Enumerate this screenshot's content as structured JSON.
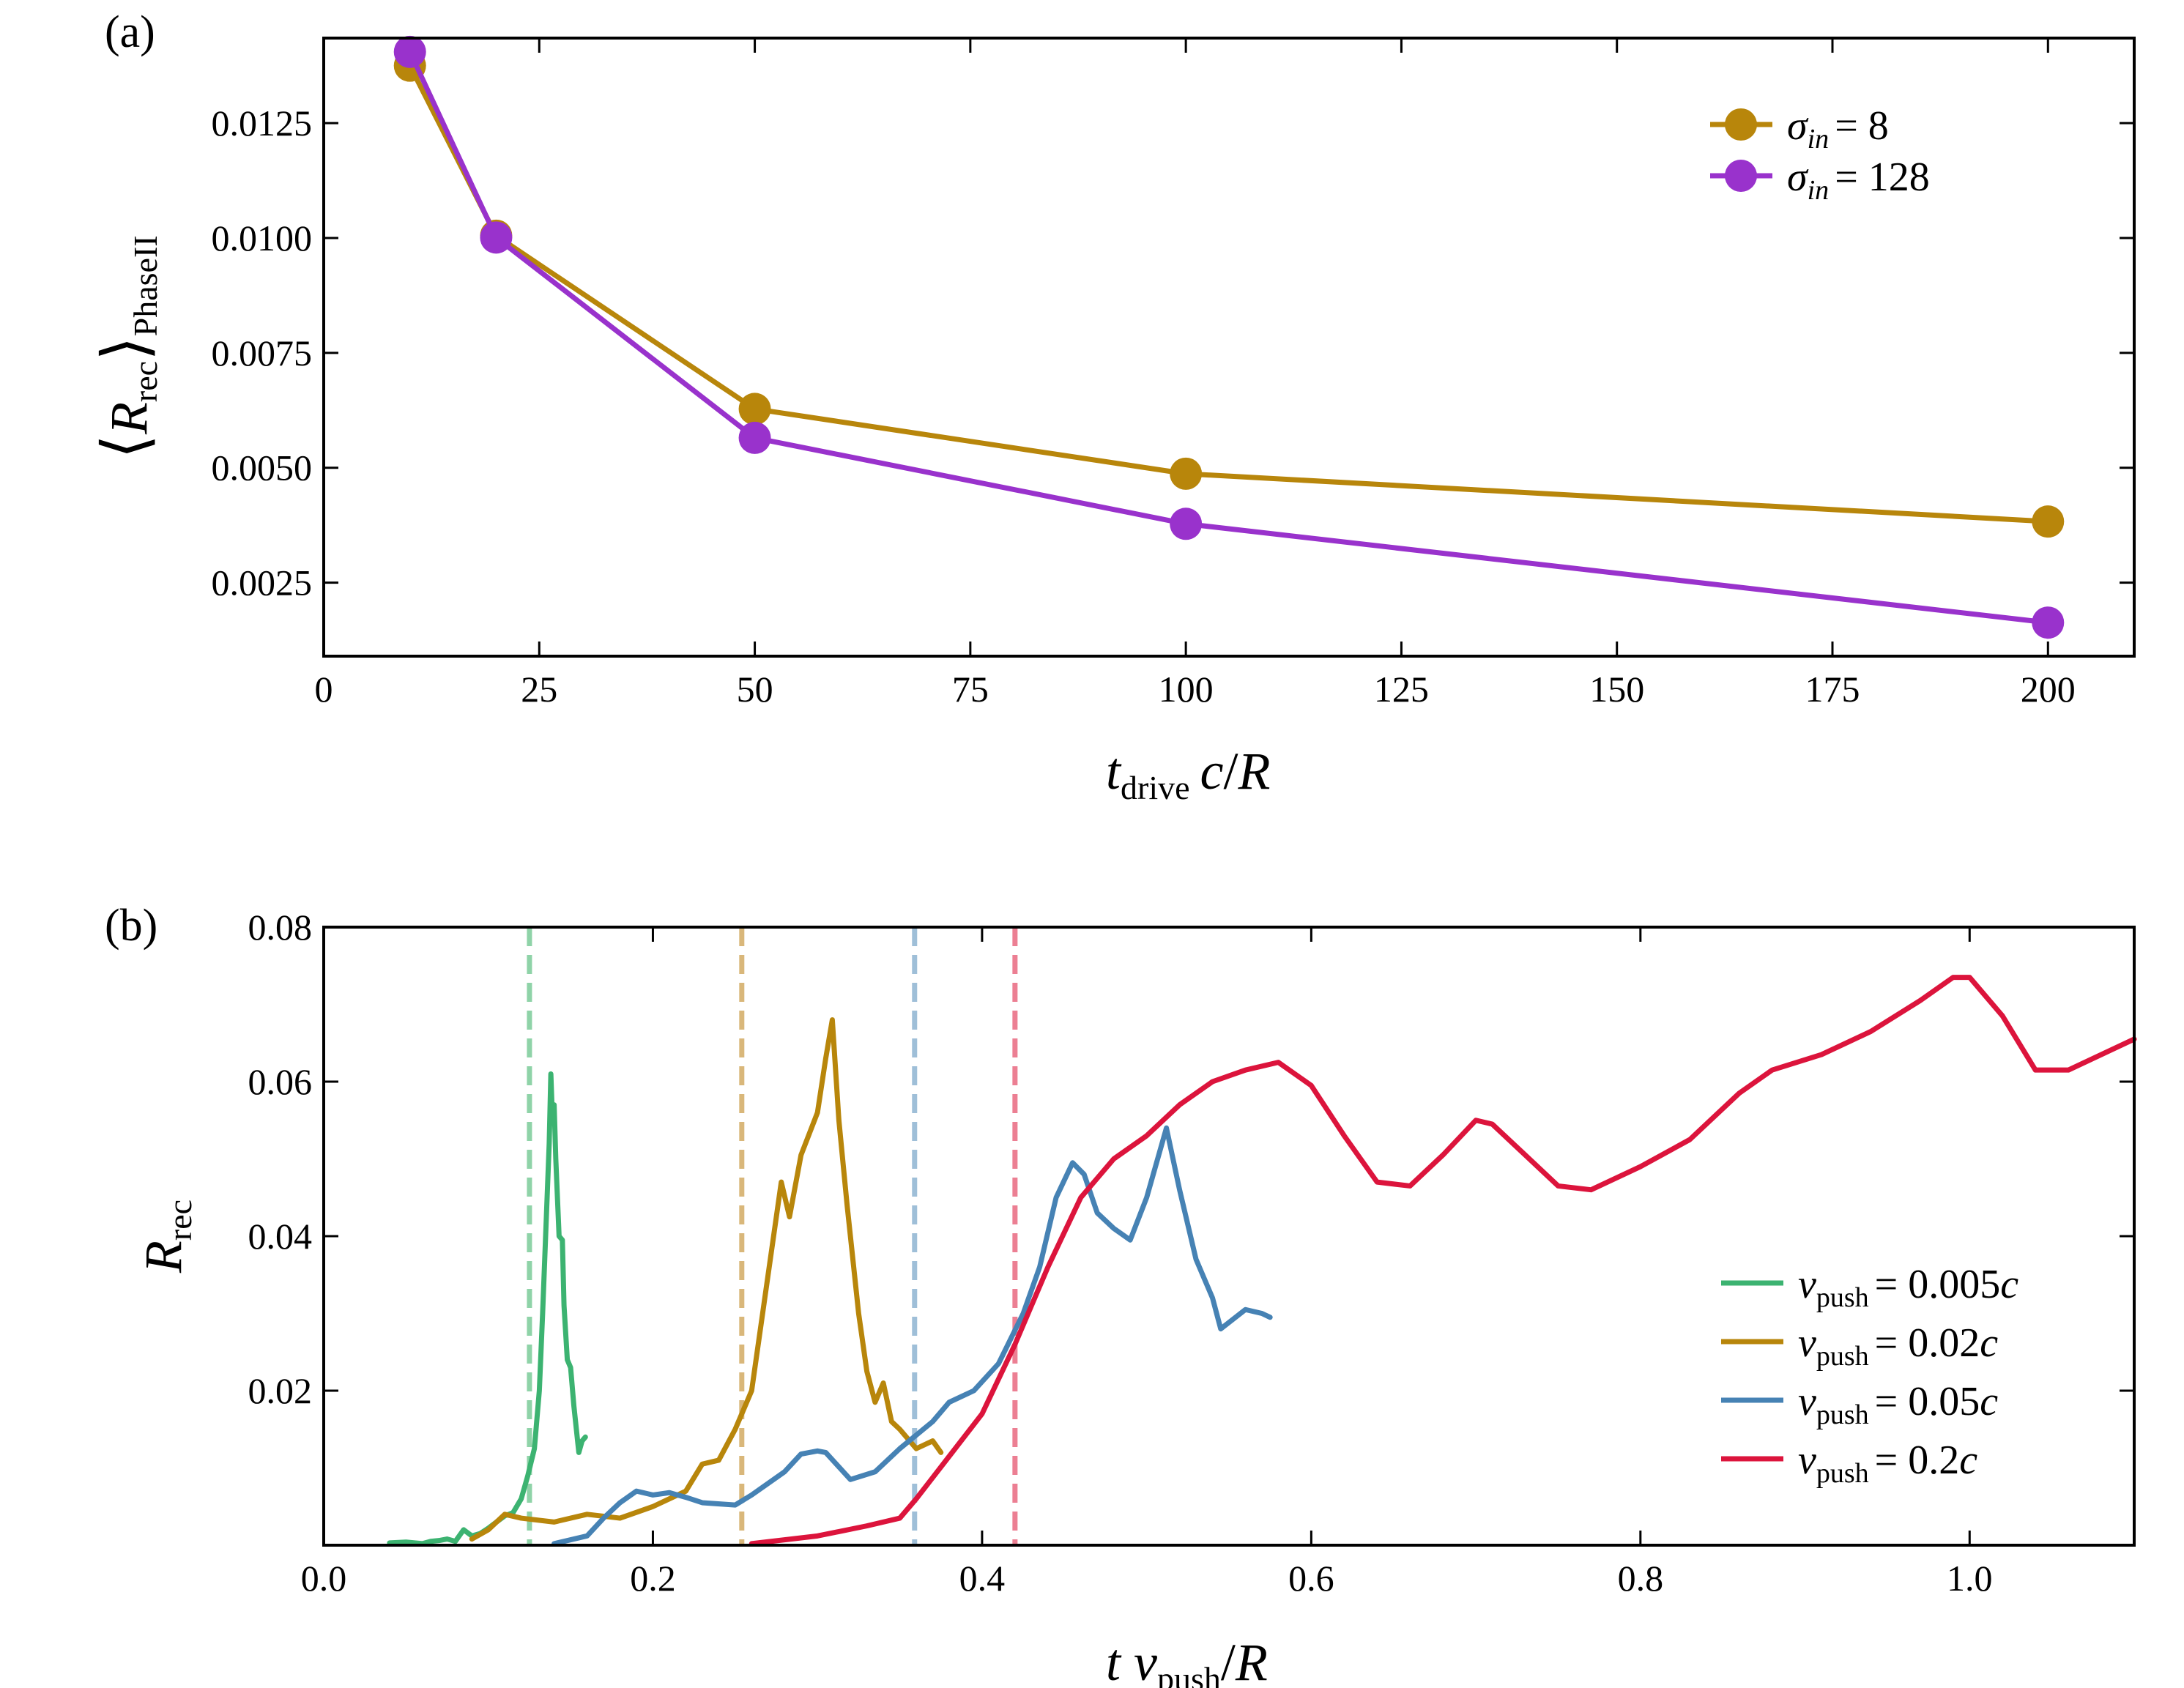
{
  "chart_data": [
    {
      "type": "line",
      "panel_label": "(a)",
      "xlabel": "t_drive c/R",
      "ylabel": "⟨R_rec⟩_PhaseII",
      "xlim": [
        0,
        210
      ],
      "ylim": [
        0.0009,
        0.01435
      ],
      "xticks": [
        0,
        25,
        50,
        75,
        100,
        125,
        150,
        175,
        200
      ],
      "yticks": [
        0.0025,
        0.005,
        0.0075,
        0.01,
        0.0125
      ],
      "ytick_labels": [
        "0.0025",
        "0.0050",
        "0.0075",
        "0.0100",
        "0.0125"
      ],
      "legend_position": "top-right",
      "x": [
        10,
        20,
        50,
        100,
        200
      ],
      "series": [
        {
          "name": "σ_in = 8",
          "color": "#b8860b",
          "values": [
            0.01375,
            0.01005,
            0.00628,
            0.00487,
            0.00383
          ]
        },
        {
          "name": "σ_in = 128",
          "color": "#9932cc",
          "values": [
            0.01405,
            0.01001,
            0.00565,
            0.00378,
            0.00163
          ]
        }
      ]
    },
    {
      "type": "line",
      "panel_label": "(b)",
      "xlabel": "t v_push/R",
      "ylabel": "R_rec",
      "xlim": [
        0,
        1.1
      ],
      "ylim": [
        0,
        0.08
      ],
      "xticks": [
        0.0,
        0.2,
        0.4,
        0.6,
        0.8,
        1.0
      ],
      "xtick_labels": [
        "0.0",
        "0.2",
        "0.4",
        "0.6",
        "0.8",
        "1.0"
      ],
      "yticks": [
        0.02,
        0.04,
        0.06,
        0.08
      ],
      "ytick_labels": [
        "0.02",
        "0.04",
        "0.06",
        "0.08"
      ],
      "legend_position": "bottom-right",
      "vlines": [
        {
          "x": 0.125,
          "color": "#8fd3a8"
        },
        {
          "x": 0.254,
          "color": "#d9b77a"
        },
        {
          "x": 0.359,
          "color": "#9fbfd8"
        },
        {
          "x": 0.42,
          "color": "#ec7f93"
        }
      ],
      "series": [
        {
          "name": "v_push = 0.005c",
          "color": "#3cb371",
          "points": [
            [
              0.04,
              0.0003
            ],
            [
              0.05,
              0.0004
            ],
            [
              0.06,
              0.0002
            ],
            [
              0.065,
              0.0005
            ],
            [
              0.07,
              0.0006
            ],
            [
              0.075,
              0.0008
            ],
            [
              0.08,
              0.0005
            ],
            [
              0.085,
              0.002
            ],
            [
              0.09,
              0.0012
            ],
            [
              0.095,
              0.0015
            ],
            [
              0.1,
              0.0022
            ],
            [
              0.105,
              0.003
            ],
            [
              0.11,
              0.0038
            ],
            [
              0.115,
              0.0042
            ],
            [
              0.12,
              0.006
            ],
            [
              0.124,
              0.009
            ],
            [
              0.128,
              0.0125
            ],
            [
              0.131,
              0.02
            ],
            [
              0.133,
              0.03
            ],
            [
              0.135,
              0.041
            ],
            [
              0.137,
              0.052
            ],
            [
              0.138,
              0.061
            ],
            [
              0.139,
              0.055
            ],
            [
              0.14,
              0.057
            ],
            [
              0.141,
              0.05
            ],
            [
              0.143,
              0.04
            ],
            [
              0.145,
              0.0395
            ],
            [
              0.146,
              0.031
            ],
            [
              0.148,
              0.024
            ],
            [
              0.15,
              0.023
            ],
            [
              0.152,
              0.018
            ],
            [
              0.155,
              0.012
            ],
            [
              0.157,
              0.0135
            ],
            [
              0.159,
              0.014
            ]
          ]
        },
        {
          "name": "v_push = 0.02c",
          "color": "#b8860b",
          "points": [
            [
              0.09,
              0.0008
            ],
            [
              0.1,
              0.002
            ],
            [
              0.11,
              0.004
            ],
            [
              0.12,
              0.0035
            ],
            [
              0.14,
              0.003
            ],
            [
              0.16,
              0.004
            ],
            [
              0.18,
              0.0035
            ],
            [
              0.2,
              0.005
            ],
            [
              0.21,
              0.006
            ],
            [
              0.22,
              0.007
            ],
            [
              0.23,
              0.0105
            ],
            [
              0.24,
              0.011
            ],
            [
              0.25,
              0.015
            ],
            [
              0.26,
              0.02
            ],
            [
              0.27,
              0.035
            ],
            [
              0.278,
              0.047
            ],
            [
              0.283,
              0.0425
            ],
            [
              0.29,
              0.0505
            ],
            [
              0.3,
              0.056
            ],
            [
              0.305,
              0.063
            ],
            [
              0.309,
              0.068
            ],
            [
              0.313,
              0.055
            ],
            [
              0.318,
              0.044
            ],
            [
              0.325,
              0.03
            ],
            [
              0.33,
              0.0225
            ],
            [
              0.335,
              0.0185
            ],
            [
              0.34,
              0.021
            ],
            [
              0.345,
              0.016
            ],
            [
              0.35,
              0.015
            ],
            [
              0.36,
              0.0125
            ],
            [
              0.37,
              0.0135
            ],
            [
              0.375,
              0.012
            ]
          ]
        },
        {
          "name": "v_push = 0.05c",
          "color": "#4682b4",
          "points": [
            [
              0.14,
              0.0002
            ],
            [
              0.16,
              0.0012
            ],
            [
              0.17,
              0.0035
            ],
            [
              0.18,
              0.0055
            ],
            [
              0.19,
              0.007
            ],
            [
              0.2,
              0.0065
            ],
            [
              0.21,
              0.0068
            ],
            [
              0.22,
              0.0062
            ],
            [
              0.23,
              0.0055
            ],
            [
              0.25,
              0.0052
            ],
            [
              0.26,
              0.0065
            ],
            [
              0.28,
              0.0095
            ],
            [
              0.29,
              0.0118
            ],
            [
              0.3,
              0.0122
            ],
            [
              0.305,
              0.012
            ],
            [
              0.32,
              0.0085
            ],
            [
              0.335,
              0.0095
            ],
            [
              0.35,
              0.0125
            ],
            [
              0.37,
              0.016
            ],
            [
              0.38,
              0.0185
            ],
            [
              0.395,
              0.02
            ],
            [
              0.41,
              0.0235
            ],
            [
              0.425,
              0.03
            ],
            [
              0.435,
              0.036
            ],
            [
              0.445,
              0.045
            ],
            [
              0.455,
              0.0495
            ],
            [
              0.462,
              0.048
            ],
            [
              0.47,
              0.043
            ],
            [
              0.48,
              0.041
            ],
            [
              0.49,
              0.0395
            ],
            [
              0.5,
              0.045
            ],
            [
              0.512,
              0.054
            ],
            [
              0.52,
              0.046
            ],
            [
              0.53,
              0.037
            ],
            [
              0.54,
              0.032
            ],
            [
              0.545,
              0.028
            ],
            [
              0.56,
              0.0305
            ],
            [
              0.57,
              0.03
            ],
            [
              0.575,
              0.0295
            ]
          ]
        },
        {
          "name": "v_push = 0.2c",
          "color": "#dc143c",
          "points": [
            [
              0.26,
              0.0002
            ],
            [
              0.3,
              0.0012
            ],
            [
              0.33,
              0.0025
            ],
            [
              0.35,
              0.0035
            ],
            [
              0.36,
              0.006
            ],
            [
              0.38,
              0.0115
            ],
            [
              0.4,
              0.017
            ],
            [
              0.42,
              0.026
            ],
            [
              0.44,
              0.036
            ],
            [
              0.46,
              0.045
            ],
            [
              0.48,
              0.05
            ],
            [
              0.5,
              0.053
            ],
            [
              0.52,
              0.057
            ],
            [
              0.54,
              0.06
            ],
            [
              0.56,
              0.0615
            ],
            [
              0.58,
              0.0625
            ],
            [
              0.6,
              0.0595
            ],
            [
              0.62,
              0.053
            ],
            [
              0.64,
              0.047
            ],
            [
              0.66,
              0.0465
            ],
            [
              0.68,
              0.0505
            ],
            [
              0.7,
              0.055
            ],
            [
              0.71,
              0.0545
            ],
            [
              0.73,
              0.0505
            ],
            [
              0.75,
              0.0465
            ],
            [
              0.77,
              0.046
            ],
            [
              0.8,
              0.049
            ],
            [
              0.83,
              0.0525
            ],
            [
              0.86,
              0.0585
            ],
            [
              0.88,
              0.0615
            ],
            [
              0.91,
              0.0635
            ],
            [
              0.94,
              0.0665
            ],
            [
              0.97,
              0.0705
            ],
            [
              0.99,
              0.0735
            ],
            [
              1.0,
              0.0735
            ],
            [
              1.02,
              0.0685
            ],
            [
              1.04,
              0.0615
            ],
            [
              1.06,
              0.0615
            ],
            [
              1.08,
              0.0635
            ],
            [
              1.1,
              0.0655
            ]
          ]
        }
      ]
    }
  ]
}
